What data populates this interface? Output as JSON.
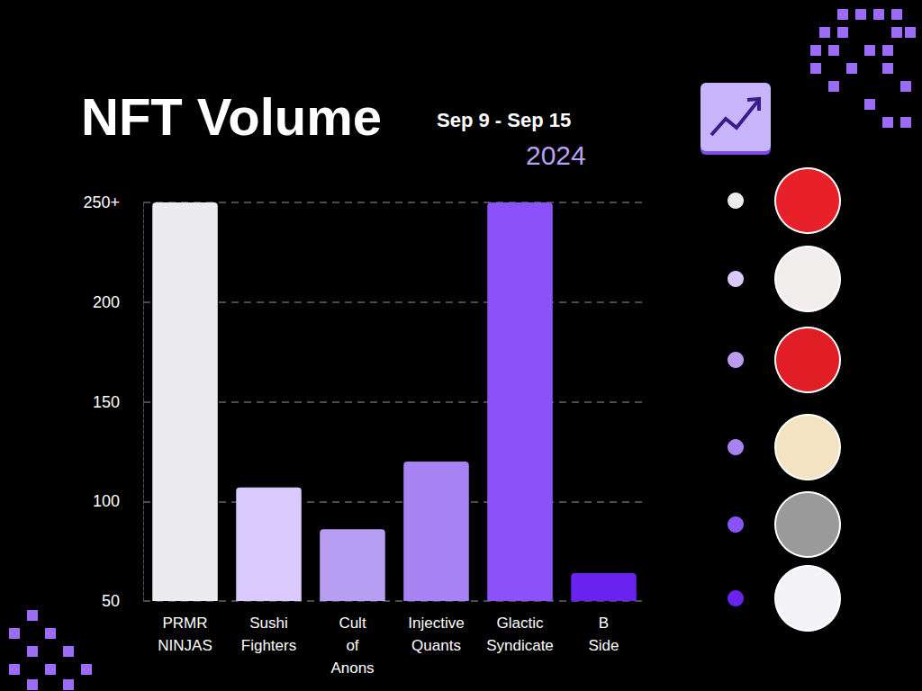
{
  "chart_data": {
    "type": "bar",
    "title": "NFT Volume",
    "subtitle": "Sep 9 - Sep 15",
    "annotations": [
      "2024"
    ],
    "categories": [
      "PRMR NINJAS",
      "Sushi Fighters",
      "Cult of Anons",
      "Injective Quants",
      "Glactic Syndicate",
      "B Side"
    ],
    "values": [
      250,
      107,
      86,
      120,
      250,
      64
    ],
    "colors": [
      "#ebebf0",
      "#d9c9fc",
      "#b89ef3",
      "#a682f2",
      "#8b52f9",
      "#6a22ef"
    ],
    "ylim": [
      50,
      250
    ],
    "yticks": [
      50,
      100,
      150,
      200,
      {
        "value": 250,
        "label": "250+"
      }
    ],
    "grid": true
  }
}
